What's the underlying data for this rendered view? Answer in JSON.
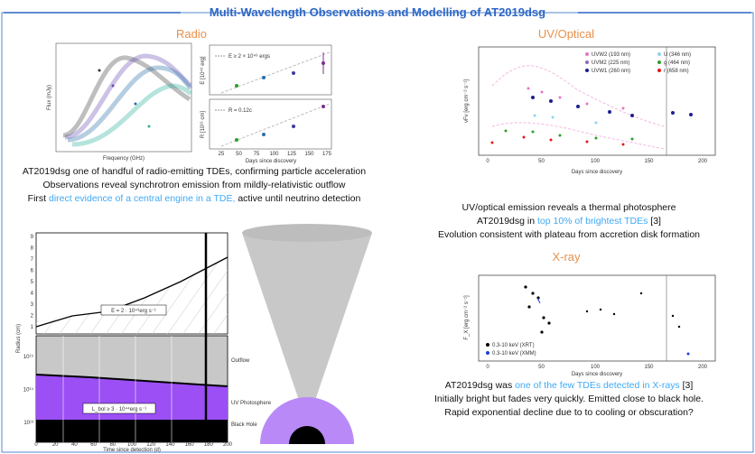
{
  "header": {
    "title": "Multi-Wavelength Observations and Modelling of AT2019dsg"
  },
  "radio": {
    "title": "Radio",
    "spectrum_plot": {
      "y_label": "Flux (mJy)",
      "x_label": "Frequency (GHz)"
    },
    "energy_plot": {
      "annotation": "E ≥ 2 × 10⁴⁹ ergs",
      "y_label": "E [10⁴⁹ erg]"
    },
    "radius_plot": {
      "annotation": "R = 0.12c",
      "y_label": "R [10¹⁶ cm]",
      "x_label": "Days since discovery",
      "xticks": [
        "25",
        "50",
        "75",
        "100",
        "125",
        "150",
        "175"
      ]
    },
    "text": [
      [
        "AT2019dsg one of handful of radio-emitting TDEs, confirming particle acceleration"
      ],
      [
        "Observations reveal synchrotron emission from mildly-relativistic outflow"
      ],
      [
        {
          "text": "First ",
          "color": "#111111"
        },
        {
          "text": "direct evidence of a central engine in a TDE,",
          "color": "#3fa9f5"
        },
        {
          "text": " active until neutrino detection",
          "color": "#111111"
        }
      ]
    ]
  },
  "model_plot": {
    "y_label": "Radius (cm)",
    "x_label": "Time since detection (d)",
    "yticks_upper": [
      "9",
      "8",
      "7",
      "6",
      "5",
      "4",
      "3",
      "2",
      "1"
    ],
    "yticks_lower": [
      "10¹⁵",
      "10¹⁴",
      "10¹³"
    ],
    "xticks": [
      "0",
      "20",
      "40",
      "60",
      "80",
      "100",
      "120",
      "140",
      "160",
      "180",
      "200"
    ],
    "energy_label": "E = 2 · 10⁴⁹erg s⁻¹",
    "lum_label": "L_bol ≥ 3 · 10⁴⁴erg s⁻¹",
    "regions": [
      "Outflow",
      "UV Photosphere",
      "Black Hole"
    ]
  },
  "uv_optical": {
    "title": "UV/Optical",
    "plot": {
      "y_label": "νFν [erg cm⁻² s⁻¹]",
      "x_label": "Days since discovery",
      "xticks": [
        "0",
        "50",
        "100",
        "150",
        "200"
      ],
      "legend": [
        {
          "name": "UVW2 (193 nm)",
          "color": "#e377c2"
        },
        {
          "name": "UVM2 (225 nm)",
          "color": "#9467bd"
        },
        {
          "name": "UVW1 (260 nm)",
          "color": "#1f1f8f"
        },
        {
          "name": "U (346 nm)",
          "color": "#8fd3f0"
        },
        {
          "name": "g (464 nm)",
          "color": "#2ca02c"
        },
        {
          "name": "r (658 nm)",
          "color": "#e31a1c"
        }
      ]
    },
    "text": [
      [
        "UV/optical emission reveals a thermal photosphere"
      ],
      [
        {
          "text": "AT2019dsg in ",
          "color": "#111111"
        },
        {
          "text": "top 10% of brightest TDEs",
          "color": "#3fa9f5"
        },
        {
          "text": " [3]",
          "color": "#111111"
        }
      ],
      [
        "Evolution consistent with plateau from accretion disk formation"
      ]
    ]
  },
  "xray": {
    "title": "X-ray",
    "plot": {
      "y_label": "F_X [erg cm⁻² s⁻¹]",
      "x_label": "Days since discovery",
      "xticks": [
        "0",
        "50",
        "100",
        "150",
        "200"
      ],
      "legend": [
        {
          "name": "0.3-10 keV (XRT)",
          "color": "#000000"
        },
        {
          "name": "0.3-10 keV (XMM)",
          "color": "#1f3fd8"
        }
      ]
    },
    "text": [
      [
        {
          "text": "AT2019dsg was ",
          "color": "#111111"
        },
        {
          "text": "one of the few TDEs detected in X-rays",
          "color": "#3fa9f5"
        },
        {
          "text": " [3]",
          "color": "#111111"
        }
      ],
      [
        "Initially bright but fades very quickly. Emitted close to black hole."
      ],
      [
        "Rapid exponential decline due to to cooling or obscuration?"
      ]
    ]
  }
}
